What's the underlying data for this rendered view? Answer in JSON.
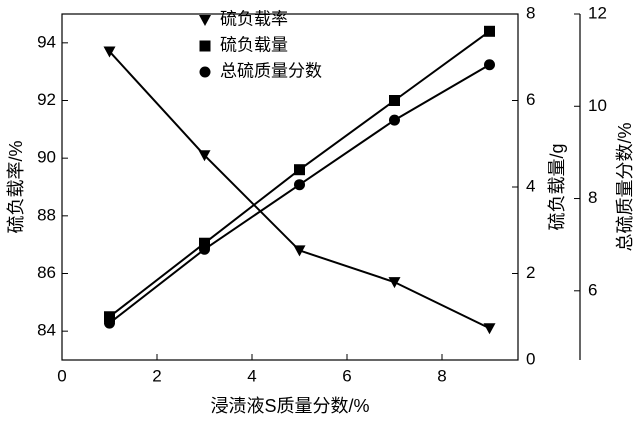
{
  "chart_data": {
    "type": "line",
    "x_label": "浸渍液S质量分数/%",
    "y_label": "硫负载率/%",
    "y2_label": "硫负载量/g",
    "y3_label": "总硫质量分数/%",
    "x": [
      1,
      3,
      5,
      7,
      9
    ],
    "xlim": [
      0,
      9.6
    ],
    "xticks": [
      0,
      2,
      4,
      6,
      8
    ],
    "ylim": [
      83,
      95
    ],
    "yticks": [
      84,
      86,
      88,
      90,
      92,
      94
    ],
    "y2lim": [
      0,
      8
    ],
    "y2ticks": [
      0,
      2,
      4,
      6,
      8
    ],
    "y3lim": [
      4.5,
      12
    ],
    "y3ticks": [
      6,
      8,
      10,
      12
    ],
    "series": [
      {
        "name": "硫负载率",
        "color": "#000000",
        "marker": "triangle-down",
        "axis": "y",
        "values": [
          93.7,
          90.1,
          86.8,
          85.7,
          84.1
        ]
      },
      {
        "name": "硫负载量",
        "color": "#000000",
        "marker": "square",
        "axis": "y2",
        "values": [
          1.0,
          2.7,
          4.4,
          6.0,
          7.6
        ]
      },
      {
        "name": "总硫质量分数",
        "color": "#000000",
        "marker": "circle",
        "axis": "y3",
        "values": [
          5.3,
          6.9,
          8.3,
          9.7,
          10.9
        ]
      }
    ]
  }
}
